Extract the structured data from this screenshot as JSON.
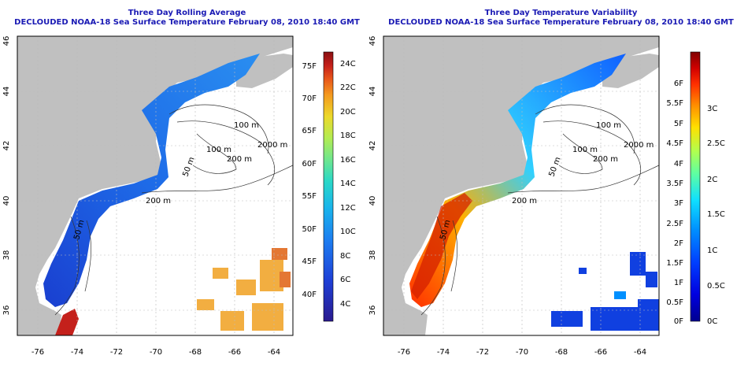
{
  "panels": [
    {
      "title_line1": "Three Day Rolling Average",
      "title_line2": "DECLOUDED NOAA-18 Sea Surface Temperature February 08, 2010 18:40 GMT",
      "x_ticks": [
        "-76",
        "-74",
        "-72",
        "-70",
        "-68",
        "-66",
        "-64"
      ],
      "y_ticks": [
        "36",
        "38",
        "40",
        "42",
        "44",
        "46"
      ],
      "contours": [
        "100 m",
        "100 m",
        "2000 m",
        "200 m",
        "50 m",
        "50 m",
        "200 m"
      ],
      "colorbar": {
        "colors": [
          "#2a1a8e",
          "#1e3fd6",
          "#1d7df0",
          "#19b4ec",
          "#2ad8c7",
          "#6ee68e",
          "#b3ec52",
          "#ecd92a",
          "#f49a1f",
          "#e8561a",
          "#c4201b",
          "#8a0f12"
        ],
        "left_labels": [
          "75F",
          "70F",
          "65F",
          "60F",
          "55F",
          "50F",
          "45F",
          "40F"
        ],
        "right_labels": [
          "24C",
          "22C",
          "20C",
          "18C",
          "16C",
          "14C",
          "12C",
          "10C",
          "8C",
          "6C",
          "4C"
        ]
      }
    },
    {
      "title_line1": "Three Day Temperature Variability",
      "title_line2": "DECLOUDED NOAA-18 Sea Surface Temperature February 08, 2010 18:40 GMT",
      "x_ticks": [
        "-76",
        "-74",
        "-72",
        "-70",
        "-68",
        "-66",
        "-64"
      ],
      "y_ticks": [
        "36",
        "38",
        "40",
        "42",
        "44",
        "46"
      ],
      "contours": [
        "100 m",
        "100 m",
        "2000 m",
        "200 m",
        "50 m",
        "50 m",
        "200 m"
      ],
      "colorbar": {
        "colors": [
          "#00008f",
          "#0000e0",
          "#0040ff",
          "#0090ff",
          "#10e0ff",
          "#60ffa0",
          "#b0ff50",
          "#ffe000",
          "#ff9000",
          "#ff3000",
          "#d00000",
          "#800000"
        ],
        "left_labels": [
          "6F",
          "5.5F",
          "5F",
          "4.5F",
          "4F",
          "3.5F",
          "3F",
          "2.5F",
          "2F",
          "1.5F",
          "1F",
          "0.5F",
          "0F"
        ],
        "right_labels": [
          "3C",
          "2.5C",
          "2C",
          "1.5C",
          "1C",
          "0.5C",
          "0C"
        ]
      }
    }
  ]
}
